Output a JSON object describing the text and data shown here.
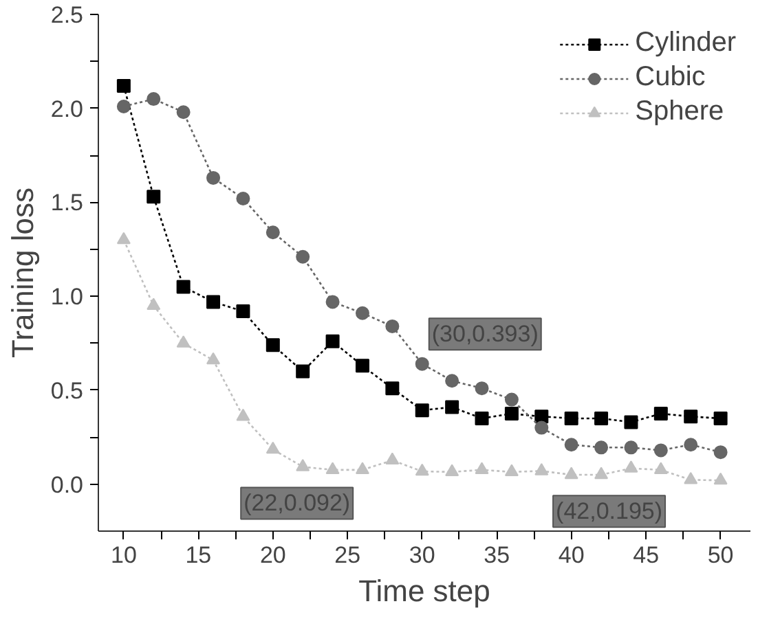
{
  "chart_data": {
    "type": "line",
    "xlabel": "Time step",
    "ylabel": "Training loss",
    "x": [
      10,
      12,
      14,
      16,
      18,
      20,
      22,
      24,
      26,
      28,
      30,
      32,
      34,
      36,
      38,
      40,
      42,
      44,
      46,
      48,
      50
    ],
    "series": [
      {
        "name": "Cylinder",
        "color": "#000000",
        "marker": "square",
        "values": [
          2.12,
          1.53,
          1.05,
          0.97,
          0.92,
          0.74,
          0.6,
          0.76,
          0.63,
          0.51,
          0.393,
          0.41,
          0.35,
          0.375,
          0.36,
          0.35,
          0.35,
          0.33,
          0.375,
          0.36,
          0.35
        ]
      },
      {
        "name": "Cubic",
        "color": "#666666",
        "marker": "circle",
        "values": [
          2.01,
          2.05,
          1.98,
          1.63,
          1.52,
          1.34,
          1.21,
          0.97,
          0.91,
          0.84,
          0.64,
          0.55,
          0.51,
          0.45,
          0.3,
          0.21,
          0.195,
          0.195,
          0.18,
          0.21,
          0.17
        ]
      },
      {
        "name": "Sphere",
        "color": "#c0c0c0",
        "marker": "triangle",
        "values": [
          1.3,
          0.95,
          0.75,
          0.66,
          0.36,
          0.185,
          0.092,
          0.076,
          0.076,
          0.127,
          0.068,
          0.065,
          0.076,
          0.065,
          0.07,
          0.05,
          0.05,
          0.084,
          0.076,
          0.023,
          0.02
        ]
      }
    ],
    "xlim": [
      8.3,
      52
    ],
    "ylim": [
      -0.25,
      2.5
    ],
    "xticks": [
      10,
      {
        "value": 12.5,
        "label": null
      },
      15,
      {
        "value": 17.5,
        "label": null
      },
      20,
      {
        "value": 22.5,
        "label": null
      },
      25,
      {
        "value": 27.5,
        "label": null
      },
      30,
      {
        "value": 32.5,
        "label": null
      },
      35,
      {
        "value": 37.5,
        "label": null
      },
      40,
      {
        "value": 42.5,
        "label": null
      },
      45,
      {
        "value": 47.5,
        "label": null
      },
      50
    ],
    "yticks": [
      {
        "value": 0,
        "label": "0.0"
      },
      {
        "value": 0.25,
        "label": null
      },
      {
        "value": 0.5,
        "label": "0.5"
      },
      {
        "value": 0.75,
        "label": null
      },
      {
        "value": 1,
        "label": "1.0"
      },
      {
        "value": 1.25,
        "label": null
      },
      {
        "value": 1.5,
        "label": "1.5"
      },
      {
        "value": 1.75,
        "label": null
      },
      {
        "value": 2,
        "label": "2.0"
      },
      {
        "value": 2.25,
        "label": null
      },
      {
        "value": 2.5,
        "label": "2.5"
      }
    ],
    "annotations": [
      {
        "text": "(30,0.393)",
        "x": 30,
        "y": 0.393
      },
      {
        "text": "(22,0.092)",
        "x": 22,
        "y": 0.092
      },
      {
        "text": "(42,0.195)",
        "x": 42,
        "y": 0.195
      }
    ],
    "line_style": "dotted",
    "legend": "top right",
    "grid": false
  }
}
